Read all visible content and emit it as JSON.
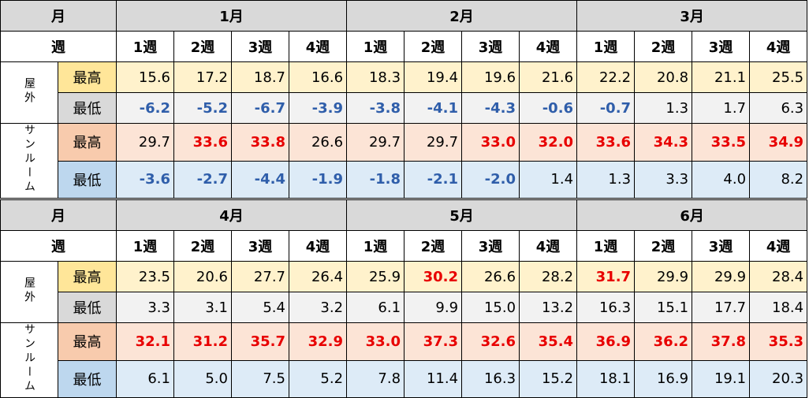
{
  "tables": [
    {
      "header": {
        "corner": "月",
        "months": [
          "1月",
          "2月",
          "3月"
        ]
      },
      "week_header": {
        "corner": "週",
        "weeks": [
          "1週",
          "2週",
          "3週",
          "4週",
          "1週",
          "2週",
          "3週",
          "4週",
          "1週",
          "2週",
          "3週",
          "4週"
        ]
      },
      "groups": [
        {
          "label": "屋外",
          "rows": [
            {
              "label": "最高",
              "values": [
                "15.6",
                "17.2",
                "18.7",
                "16.6",
                "18.3",
                "19.4",
                "19.6",
                "21.6",
                "22.2",
                "20.8",
                "21.1",
                "25.5"
              ]
            },
            {
              "label": "最低",
              "values": [
                "-6.2",
                "-5.2",
                "-6.7",
                "-3.9",
                "-3.8",
                "-4.1",
                "-4.3",
                "-0.6",
                "-0.7",
                "1.3",
                "1.7",
                "6.3"
              ]
            }
          ]
        },
        {
          "label": "サンルーム",
          "rows": [
            {
              "label": "最高",
              "values": [
                "29.7",
                "33.6",
                "33.8",
                "26.6",
                "29.7",
                "29.7",
                "33.0",
                "32.0",
                "33.6",
                "34.3",
                "33.5",
                "34.9"
              ]
            },
            {
              "label": "最低",
              "values": [
                "-3.6",
                "-2.7",
                "-4.4",
                "-1.9",
                "-1.8",
                "-2.1",
                "-2.0",
                "1.4",
                "1.3",
                "3.3",
                "4.0",
                "8.2"
              ]
            }
          ]
        }
      ]
    },
    {
      "header": {
        "corner": "月",
        "months": [
          "4月",
          "5月",
          "6月"
        ]
      },
      "week_header": {
        "corner": "週",
        "weeks": [
          "1週",
          "2週",
          "3週",
          "4週",
          "1週",
          "2週",
          "3週",
          "4週",
          "1週",
          "2週",
          "3週",
          "4週"
        ]
      },
      "groups": [
        {
          "label": "屋外",
          "rows": [
            {
              "label": "最高",
              "values": [
                "23.5",
                "20.6",
                "27.7",
                "26.4",
                "25.9",
                "30.2",
                "26.6",
                "28.2",
                "31.7",
                "29.9",
                "29.9",
                "28.4"
              ]
            },
            {
              "label": "最低",
              "values": [
                "3.3",
                "3.1",
                "5.4",
                "3.2",
                "6.1",
                "9.9",
                "15.0",
                "13.2",
                "16.3",
                "15.1",
                "17.7",
                "18.4"
              ]
            }
          ]
        },
        {
          "label": "サンルーム",
          "rows": [
            {
              "label": "最高",
              "values": [
                "32.1",
                "31.2",
                "35.7",
                "32.9",
                "33.0",
                "37.3",
                "32.6",
                "35.4",
                "36.9",
                "36.2",
                "37.8",
                "35.3"
              ]
            },
            {
              "label": "最低",
              "values": [
                "6.1",
                "5.0",
                "7.5",
                "5.2",
                "7.8",
                "11.4",
                "16.3",
                "15.2",
                "18.1",
                "16.9",
                "19.1",
                "20.3"
              ]
            }
          ]
        }
      ]
    }
  ]
}
